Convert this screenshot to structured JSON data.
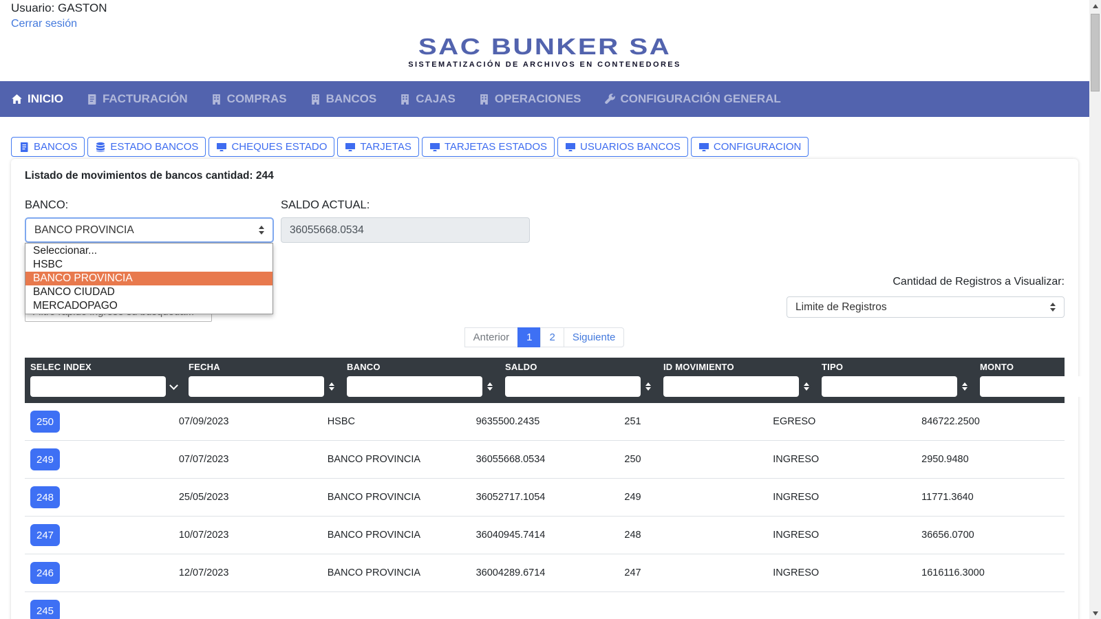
{
  "colors": {
    "navbar": "#5263ae",
    "logo_blue": "#5263ae",
    "accent_blue": "#3e70f4",
    "link_blue": "#4379dd",
    "highlight_orange": "#e8794d",
    "thead_dark": "#343a40"
  },
  "user_bar": {
    "user_label": "Usuario: GASTON",
    "logout_label": "Cerrar sesión"
  },
  "logo": {
    "title": "SAC BUNKER SA",
    "tagline": "SISTEMATIZACIÓN DE ARCHIVOS EN CONTENEDORES"
  },
  "nav": {
    "items": [
      {
        "label": "INICIO",
        "icon": "home",
        "active": true
      },
      {
        "label": "FACTURACIÓN",
        "icon": "invoice",
        "active": false
      },
      {
        "label": "COMPRAS",
        "icon": "building",
        "active": false
      },
      {
        "label": "BANCOS",
        "icon": "building",
        "active": false
      },
      {
        "label": "CAJAS",
        "icon": "building",
        "active": false
      },
      {
        "label": "OPERACIONES",
        "icon": "building",
        "active": false
      },
      {
        "label": "CONFIGURACIÓN GENERAL",
        "icon": "wrench",
        "active": false
      }
    ]
  },
  "subnav": {
    "buttons": [
      {
        "label": "BANCOS",
        "icon": "ledger"
      },
      {
        "label": "ESTADO BANCOS",
        "icon": "database"
      },
      {
        "label": "CHEQUES ESTADO",
        "icon": "desktop"
      },
      {
        "label": "TARJETAS",
        "icon": "desktop"
      },
      {
        "label": "TARJETAS ESTADOS",
        "icon": "desktop"
      },
      {
        "label": "USUARIOS BANCOS",
        "icon": "desktop"
      },
      {
        "label": "CONFIGURACION",
        "icon": "desktop"
      }
    ]
  },
  "panel": {
    "heading": "Listado de movimientos de bancos cantidad: 244",
    "banco_label": "BANCO:",
    "banco_select_value": "BANCO PROVINCIA",
    "banco_options": [
      {
        "label": "Seleccionar...",
        "selected": false
      },
      {
        "label": "HSBC",
        "selected": false
      },
      {
        "label": "BANCO PROVINCIA",
        "selected": true
      },
      {
        "label": "BANCO CIUDAD",
        "selected": false
      },
      {
        "label": "MERCADOPAGO",
        "selected": false
      }
    ],
    "saldo_label": "SALDO ACTUAL:",
    "saldo_value": "36055668.0534",
    "registros_label": "Cantidad de Registros a Visualizar:",
    "limite_select_value": "Limite de Registros",
    "filtro_placeholder": "Filtro rápido ingrese su búsqueda..."
  },
  "pagination": {
    "items": [
      {
        "label": "Anterior",
        "type": "muted"
      },
      {
        "label": "1",
        "type": "active"
      },
      {
        "label": "2",
        "type": "link"
      },
      {
        "label": "Siguiente",
        "type": "link"
      }
    ]
  },
  "table": {
    "columns": [
      {
        "label": "SELEC INDEX",
        "sort": "down"
      },
      {
        "label": "FECHA",
        "sort": "both"
      },
      {
        "label": "BANCO",
        "sort": "both"
      },
      {
        "label": "SALDO",
        "sort": "both"
      },
      {
        "label": "ID MOVIMIENTO",
        "sort": "both"
      },
      {
        "label": "TIPO",
        "sort": "both"
      },
      {
        "label": "MONTO",
        "sort": "both"
      }
    ],
    "rows": [
      {
        "index": "250",
        "fecha": "07/09/2023",
        "banco": "HSBC",
        "saldo": "9635500.2435",
        "id_movimiento": "251",
        "tipo": "EGRESO",
        "monto": "846722.2500"
      },
      {
        "index": "249",
        "fecha": "07/07/2023",
        "banco": "BANCO PROVINCIA",
        "saldo": "36055668.0534",
        "id_movimiento": "250",
        "tipo": "INGRESO",
        "monto": "2950.9480"
      },
      {
        "index": "248",
        "fecha": "25/05/2023",
        "banco": "BANCO PROVINCIA",
        "saldo": "36052717.1054",
        "id_movimiento": "249",
        "tipo": "INGRESO",
        "monto": "11771.3640"
      },
      {
        "index": "247",
        "fecha": "10/07/2023",
        "banco": "BANCO PROVINCIA",
        "saldo": "36040945.7414",
        "id_movimiento": "248",
        "tipo": "INGRESO",
        "monto": "36656.0700"
      },
      {
        "index": "246",
        "fecha": "12/07/2023",
        "banco": "BANCO PROVINCIA",
        "saldo": "36004289.6714",
        "id_movimiento": "247",
        "tipo": "INGRESO",
        "monto": "1616116.3000"
      },
      {
        "index": "245",
        "fecha": "",
        "banco": "",
        "saldo": "",
        "id_movimiento": "",
        "tipo": "",
        "monto": ""
      }
    ]
  }
}
